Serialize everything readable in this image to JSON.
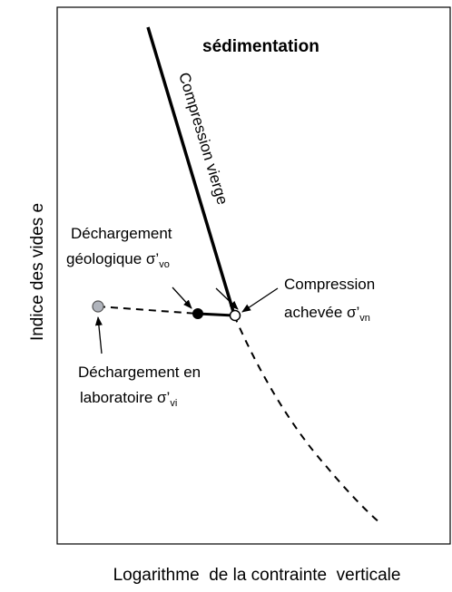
{
  "axis_labels": {
    "y": "Indice des vides e",
    "x": "Logarithme  de la contrainte  verticale"
  },
  "labels": {
    "sedimentation": "sédimentation",
    "compression_vierge": "Compression vierge",
    "dechargement_geologique": {
      "line1": "Déchargement",
      "line2": "géologique σ’",
      "sub": "vo"
    },
    "compression_achevee": {
      "line1": "Compression",
      "line2": "achevée σ’",
      "sub": "vn"
    },
    "dechargement_laboratoire": {
      "line1": "Déchargement en",
      "line2": "laboratoire σ’",
      "sub": "vi"
    }
  }
}
